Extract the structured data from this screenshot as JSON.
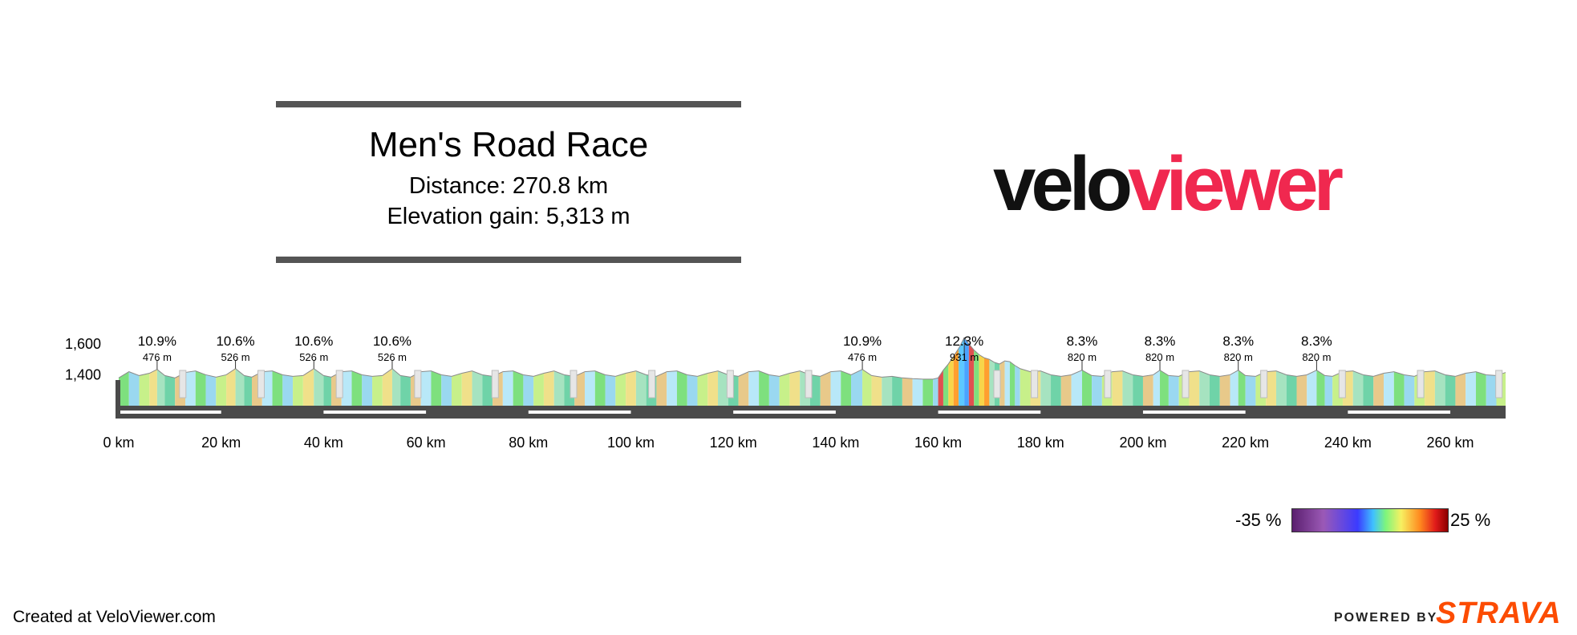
{
  "header": {
    "title": "Men's Road Race",
    "distance_text": "Distance: 270.8 km",
    "elevation_gain_text": "Elevation gain: 5,313 m"
  },
  "logo": {
    "part1": "velo",
    "part2": "viewer"
  },
  "chart_data": {
    "type": "area",
    "xlabel": "",
    "ylabel": "",
    "xlim": [
      0,
      270.8
    ],
    "ylim": [
      1200,
      1750
    ],
    "x_unit": "km",
    "x_ticks": [
      0,
      20,
      40,
      60,
      80,
      100,
      120,
      140,
      160,
      180,
      200,
      220,
      240,
      260
    ],
    "x_tick_labels": [
      "0 km",
      "20 km",
      "40 km",
      "60 km",
      "80 km",
      "100 km",
      "120 km",
      "140 km",
      "160 km",
      "180 km",
      "200 km",
      "220 km",
      "240 km",
      "260 km"
    ],
    "y_ticks": [
      1400,
      1600
    ],
    "y_tick_labels": [
      "1,400",
      "1,600"
    ],
    "climbs": [
      {
        "km": 7.5,
        "gradient": "10.9%",
        "elevation": "476 m"
      },
      {
        "km": 22.8,
        "gradient": "10.6%",
        "elevation": "526 m"
      },
      {
        "km": 38.1,
        "gradient": "10.6%",
        "elevation": "526 m"
      },
      {
        "km": 53.4,
        "gradient": "10.6%",
        "elevation": "526 m"
      },
      {
        "km": 145.2,
        "gradient": "10.9%",
        "elevation": "476 m"
      },
      {
        "km": 165.1,
        "gradient": "12.3%",
        "elevation": "931 m"
      },
      {
        "km": 188.1,
        "gradient": "8.3%",
        "elevation": "820 m"
      },
      {
        "km": 203.3,
        "gradient": "8.3%",
        "elevation": "820 m"
      },
      {
        "km": 218.6,
        "gradient": "8.3%",
        "elevation": "820 m"
      },
      {
        "km": 233.9,
        "gradient": "8.3%",
        "elevation": "820 m"
      }
    ],
    "waypoint_km": [
      12.5,
      27.8,
      43.1,
      58.4,
      73.5,
      88.8,
      104.1,
      119.4,
      134.7,
      171.5,
      178.8,
      193.1,
      208.3,
      223.6,
      238.9,
      254.2,
      269.5
    ],
    "profile": [
      {
        "x": 0,
        "y": 1380
      },
      {
        "x": 2,
        "y": 1420
      },
      {
        "x": 4,
        "y": 1395
      },
      {
        "x": 6,
        "y": 1410
      },
      {
        "x": 7.5,
        "y": 1435
      },
      {
        "x": 9,
        "y": 1395
      },
      {
        "x": 11,
        "y": 1380
      },
      {
        "x": 13,
        "y": 1415
      },
      {
        "x": 15,
        "y": 1425
      },
      {
        "x": 17,
        "y": 1400
      },
      {
        "x": 19,
        "y": 1385
      },
      {
        "x": 21,
        "y": 1400
      },
      {
        "x": 22.8,
        "y": 1440
      },
      {
        "x": 24.5,
        "y": 1395
      },
      {
        "x": 26,
        "y": 1385
      },
      {
        "x": 28,
        "y": 1420
      },
      {
        "x": 30,
        "y": 1425
      },
      {
        "x": 32,
        "y": 1400
      },
      {
        "x": 34,
        "y": 1390
      },
      {
        "x": 36,
        "y": 1395
      },
      {
        "x": 38.1,
        "y": 1440
      },
      {
        "x": 40,
        "y": 1395
      },
      {
        "x": 41.5,
        "y": 1385
      },
      {
        "x": 43.5,
        "y": 1420
      },
      {
        "x": 45.5,
        "y": 1425
      },
      {
        "x": 47.5,
        "y": 1400
      },
      {
        "x": 49.5,
        "y": 1390
      },
      {
        "x": 51.5,
        "y": 1395
      },
      {
        "x": 53.4,
        "y": 1440
      },
      {
        "x": 55,
        "y": 1395
      },
      {
        "x": 57,
        "y": 1385
      },
      {
        "x": 59,
        "y": 1420
      },
      {
        "x": 61,
        "y": 1425
      },
      {
        "x": 63,
        "y": 1400
      },
      {
        "x": 65,
        "y": 1390
      },
      {
        "x": 67,
        "y": 1410
      },
      {
        "x": 69,
        "y": 1425
      },
      {
        "x": 71,
        "y": 1400
      },
      {
        "x": 73,
        "y": 1390
      },
      {
        "x": 75,
        "y": 1420
      },
      {
        "x": 77,
        "y": 1425
      },
      {
        "x": 79,
        "y": 1400
      },
      {
        "x": 81,
        "y": 1390
      },
      {
        "x": 83,
        "y": 1410
      },
      {
        "x": 85,
        "y": 1425
      },
      {
        "x": 87,
        "y": 1400
      },
      {
        "x": 89,
        "y": 1390
      },
      {
        "x": 91,
        "y": 1420
      },
      {
        "x": 93,
        "y": 1425
      },
      {
        "x": 95,
        "y": 1400
      },
      {
        "x": 97,
        "y": 1390
      },
      {
        "x": 99,
        "y": 1410
      },
      {
        "x": 101,
        "y": 1425
      },
      {
        "x": 103,
        "y": 1400
      },
      {
        "x": 105,
        "y": 1390
      },
      {
        "x": 107,
        "y": 1420
      },
      {
        "x": 109,
        "y": 1425
      },
      {
        "x": 111,
        "y": 1400
      },
      {
        "x": 113,
        "y": 1390
      },
      {
        "x": 115,
        "y": 1410
      },
      {
        "x": 117,
        "y": 1425
      },
      {
        "x": 119,
        "y": 1400
      },
      {
        "x": 121,
        "y": 1390
      },
      {
        "x": 123,
        "y": 1420
      },
      {
        "x": 125,
        "y": 1425
      },
      {
        "x": 127,
        "y": 1400
      },
      {
        "x": 129,
        "y": 1390
      },
      {
        "x": 131,
        "y": 1410
      },
      {
        "x": 133,
        "y": 1425
      },
      {
        "x": 135,
        "y": 1400
      },
      {
        "x": 137,
        "y": 1390
      },
      {
        "x": 139,
        "y": 1420
      },
      {
        "x": 141,
        "y": 1425
      },
      {
        "x": 143,
        "y": 1400
      },
      {
        "x": 145.2,
        "y": 1435
      },
      {
        "x": 147,
        "y": 1395
      },
      {
        "x": 149,
        "y": 1385
      },
      {
        "x": 151,
        "y": 1390
      },
      {
        "x": 153,
        "y": 1380
      },
      {
        "x": 155,
        "y": 1375
      },
      {
        "x": 157,
        "y": 1372
      },
      {
        "x": 159,
        "y": 1372
      },
      {
        "x": 160,
        "y": 1380
      },
      {
        "x": 161,
        "y": 1430
      },
      {
        "x": 162,
        "y": 1470
      },
      {
        "x": 163,
        "y": 1520
      },
      {
        "x": 164,
        "y": 1570
      },
      {
        "x": 165.1,
        "y": 1640
      },
      {
        "x": 166,
        "y": 1600
      },
      {
        "x": 167,
        "y": 1560
      },
      {
        "x": 168,
        "y": 1530
      },
      {
        "x": 169,
        "y": 1510
      },
      {
        "x": 170,
        "y": 1500
      },
      {
        "x": 171,
        "y": 1480
      },
      {
        "x": 172,
        "y": 1470
      },
      {
        "x": 173,
        "y": 1490
      },
      {
        "x": 174,
        "y": 1485
      },
      {
        "x": 175,
        "y": 1460
      },
      {
        "x": 176,
        "y": 1440
      },
      {
        "x": 178,
        "y": 1420
      },
      {
        "x": 180,
        "y": 1425
      },
      {
        "x": 182,
        "y": 1400
      },
      {
        "x": 184,
        "y": 1390
      },
      {
        "x": 186,
        "y": 1400
      },
      {
        "x": 188.1,
        "y": 1430
      },
      {
        "x": 190,
        "y": 1395
      },
      {
        "x": 192,
        "y": 1390
      },
      {
        "x": 194,
        "y": 1420
      },
      {
        "x": 196,
        "y": 1425
      },
      {
        "x": 198,
        "y": 1400
      },
      {
        "x": 200,
        "y": 1390
      },
      {
        "x": 202,
        "y": 1400
      },
      {
        "x": 203.3,
        "y": 1430
      },
      {
        "x": 205,
        "y": 1395
      },
      {
        "x": 207,
        "y": 1390
      },
      {
        "x": 209,
        "y": 1420
      },
      {
        "x": 211,
        "y": 1425
      },
      {
        "x": 213,
        "y": 1400
      },
      {
        "x": 215,
        "y": 1390
      },
      {
        "x": 217,
        "y": 1400
      },
      {
        "x": 218.6,
        "y": 1430
      },
      {
        "x": 220,
        "y": 1395
      },
      {
        "x": 222,
        "y": 1390
      },
      {
        "x": 224,
        "y": 1420
      },
      {
        "x": 226,
        "y": 1425
      },
      {
        "x": 228,
        "y": 1400
      },
      {
        "x": 230,
        "y": 1390
      },
      {
        "x": 232,
        "y": 1400
      },
      {
        "x": 233.9,
        "y": 1430
      },
      {
        "x": 235.5,
        "y": 1395
      },
      {
        "x": 237,
        "y": 1390
      },
      {
        "x": 239,
        "y": 1420
      },
      {
        "x": 241,
        "y": 1425
      },
      {
        "x": 243,
        "y": 1400
      },
      {
        "x": 245,
        "y": 1390
      },
      {
        "x": 247,
        "y": 1410
      },
      {
        "x": 249,
        "y": 1420
      },
      {
        "x": 251,
        "y": 1400
      },
      {
        "x": 253,
        "y": 1390
      },
      {
        "x": 255,
        "y": 1420
      },
      {
        "x": 257,
        "y": 1425
      },
      {
        "x": 259,
        "y": 1400
      },
      {
        "x": 261,
        "y": 1390
      },
      {
        "x": 263,
        "y": 1410
      },
      {
        "x": 265,
        "y": 1420
      },
      {
        "x": 267,
        "y": 1400
      },
      {
        "x": 269,
        "y": 1395
      },
      {
        "x": 270.8,
        "y": 1415
      }
    ]
  },
  "legend": {
    "min_label": "-35 %",
    "max_label": "25 %"
  },
  "footer": {
    "created_text": "Created at VeloViewer.com",
    "powered_text": "POWERED BY",
    "strava_text": "STRAVA"
  }
}
